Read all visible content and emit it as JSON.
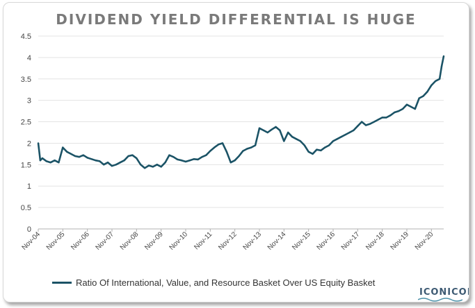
{
  "chart_data": {
    "type": "line",
    "title": "DIVIDEND YIELD DIFFERENTIAL IS HUGE",
    "xlabel": "",
    "ylabel": "",
    "ylim": [
      0,
      4.5
    ],
    "y_ticks": [
      "0",
      "0.5",
      "1",
      "1.5",
      "2",
      "2.5",
      "3",
      "3.5",
      "4",
      "4.5"
    ],
    "x_tick_labels": [
      "Nov-04",
      "Nov-05",
      "Nov-06",
      "Nov-07",
      "Nov-08",
      "Nov-09",
      "Nov-10",
      "Nov-11",
      "Nov-12",
      "Nov-13",
      "Nov-14",
      "Nov-15",
      "Nov-16",
      "Nov-17",
      "Nov-18",
      "Nov-19",
      "Nov-20"
    ],
    "grid": "horizontal",
    "legend_position": "bottom",
    "series": [
      {
        "name": "Ratio Of International, Value, and Resource Basket Over US Equity Basket",
        "color": "#1b5366",
        "x": [
          "Nov-04",
          "Dec-04",
          "Jan-05",
          "Mar-05",
          "May-05",
          "Jul-05",
          "Sep-05",
          "Nov-05",
          "Jan-06",
          "Mar-06",
          "May-06",
          "Jul-06",
          "Sep-06",
          "Nov-06",
          "Jan-07",
          "Mar-07",
          "May-07",
          "Jul-07",
          "Sep-07",
          "Nov-07",
          "Jan-08",
          "Mar-08",
          "May-08",
          "Jul-08",
          "Sep-08",
          "Nov-08",
          "Jan-09",
          "Mar-09",
          "May-09",
          "Jul-09",
          "Sep-09",
          "Nov-09",
          "Jan-10",
          "Mar-10",
          "May-10",
          "Jul-10",
          "Sep-10",
          "Nov-10",
          "Jan-11",
          "Mar-11",
          "May-11",
          "Jul-11",
          "Sep-11",
          "Nov-11",
          "Jan-12",
          "Mar-12",
          "May-12",
          "Jul-12",
          "Sep-12",
          "Nov-12",
          "Jan-13",
          "Mar-13",
          "May-13",
          "Jul-13",
          "Sep-13",
          "Nov-13",
          "Jan-14",
          "Mar-14",
          "May-14",
          "Jul-14",
          "Sep-14",
          "Nov-14",
          "Jan-15",
          "Mar-15",
          "May-15",
          "Jul-15",
          "Sep-15",
          "Nov-15",
          "Jan-16",
          "Mar-16",
          "May-16",
          "Jul-16",
          "Sep-16",
          "Nov-16",
          "Jan-17",
          "Mar-17",
          "May-17",
          "Jul-17",
          "Sep-17",
          "Nov-17",
          "Jan-18",
          "Mar-18",
          "May-18",
          "Jul-18",
          "Sep-18",
          "Nov-18",
          "Jan-19",
          "Mar-19",
          "May-19",
          "Jul-19",
          "Sep-19",
          "Nov-19",
          "Jan-20",
          "Mar-20",
          "May-20",
          "Jul-20",
          "Sep-20",
          "Nov-20",
          "Jan-21",
          "Mar-21",
          "Apr-21",
          "May-21"
        ],
        "values": [
          2.0,
          1.6,
          1.65,
          1.58,
          1.55,
          1.6,
          1.55,
          1.9,
          1.8,
          1.75,
          1.7,
          1.68,
          1.72,
          1.66,
          1.63,
          1.6,
          1.58,
          1.5,
          1.55,
          1.47,
          1.5,
          1.55,
          1.6,
          1.7,
          1.72,
          1.65,
          1.5,
          1.42,
          1.48,
          1.45,
          1.5,
          1.45,
          1.55,
          1.72,
          1.68,
          1.62,
          1.6,
          1.57,
          1.6,
          1.63,
          1.62,
          1.68,
          1.72,
          1.82,
          1.9,
          1.97,
          2.0,
          1.8,
          1.55,
          1.6,
          1.7,
          1.82,
          1.87,
          1.9,
          1.95,
          2.35,
          2.3,
          2.25,
          2.32,
          2.38,
          2.3,
          2.05,
          2.25,
          2.15,
          2.1,
          2.05,
          1.95,
          1.8,
          1.75,
          1.85,
          1.83,
          1.9,
          1.95,
          2.05,
          2.1,
          2.15,
          2.2,
          2.25,
          2.3,
          2.4,
          2.5,
          2.42,
          2.45,
          2.5,
          2.55,
          2.6,
          2.6,
          2.65,
          2.72,
          2.75,
          2.8,
          2.9,
          2.85,
          2.8,
          3.05,
          3.1,
          3.2,
          3.35,
          3.45,
          3.5,
          3.8,
          4.03
        ]
      }
    ]
  },
  "logo": {
    "text": "ICONICON"
  }
}
